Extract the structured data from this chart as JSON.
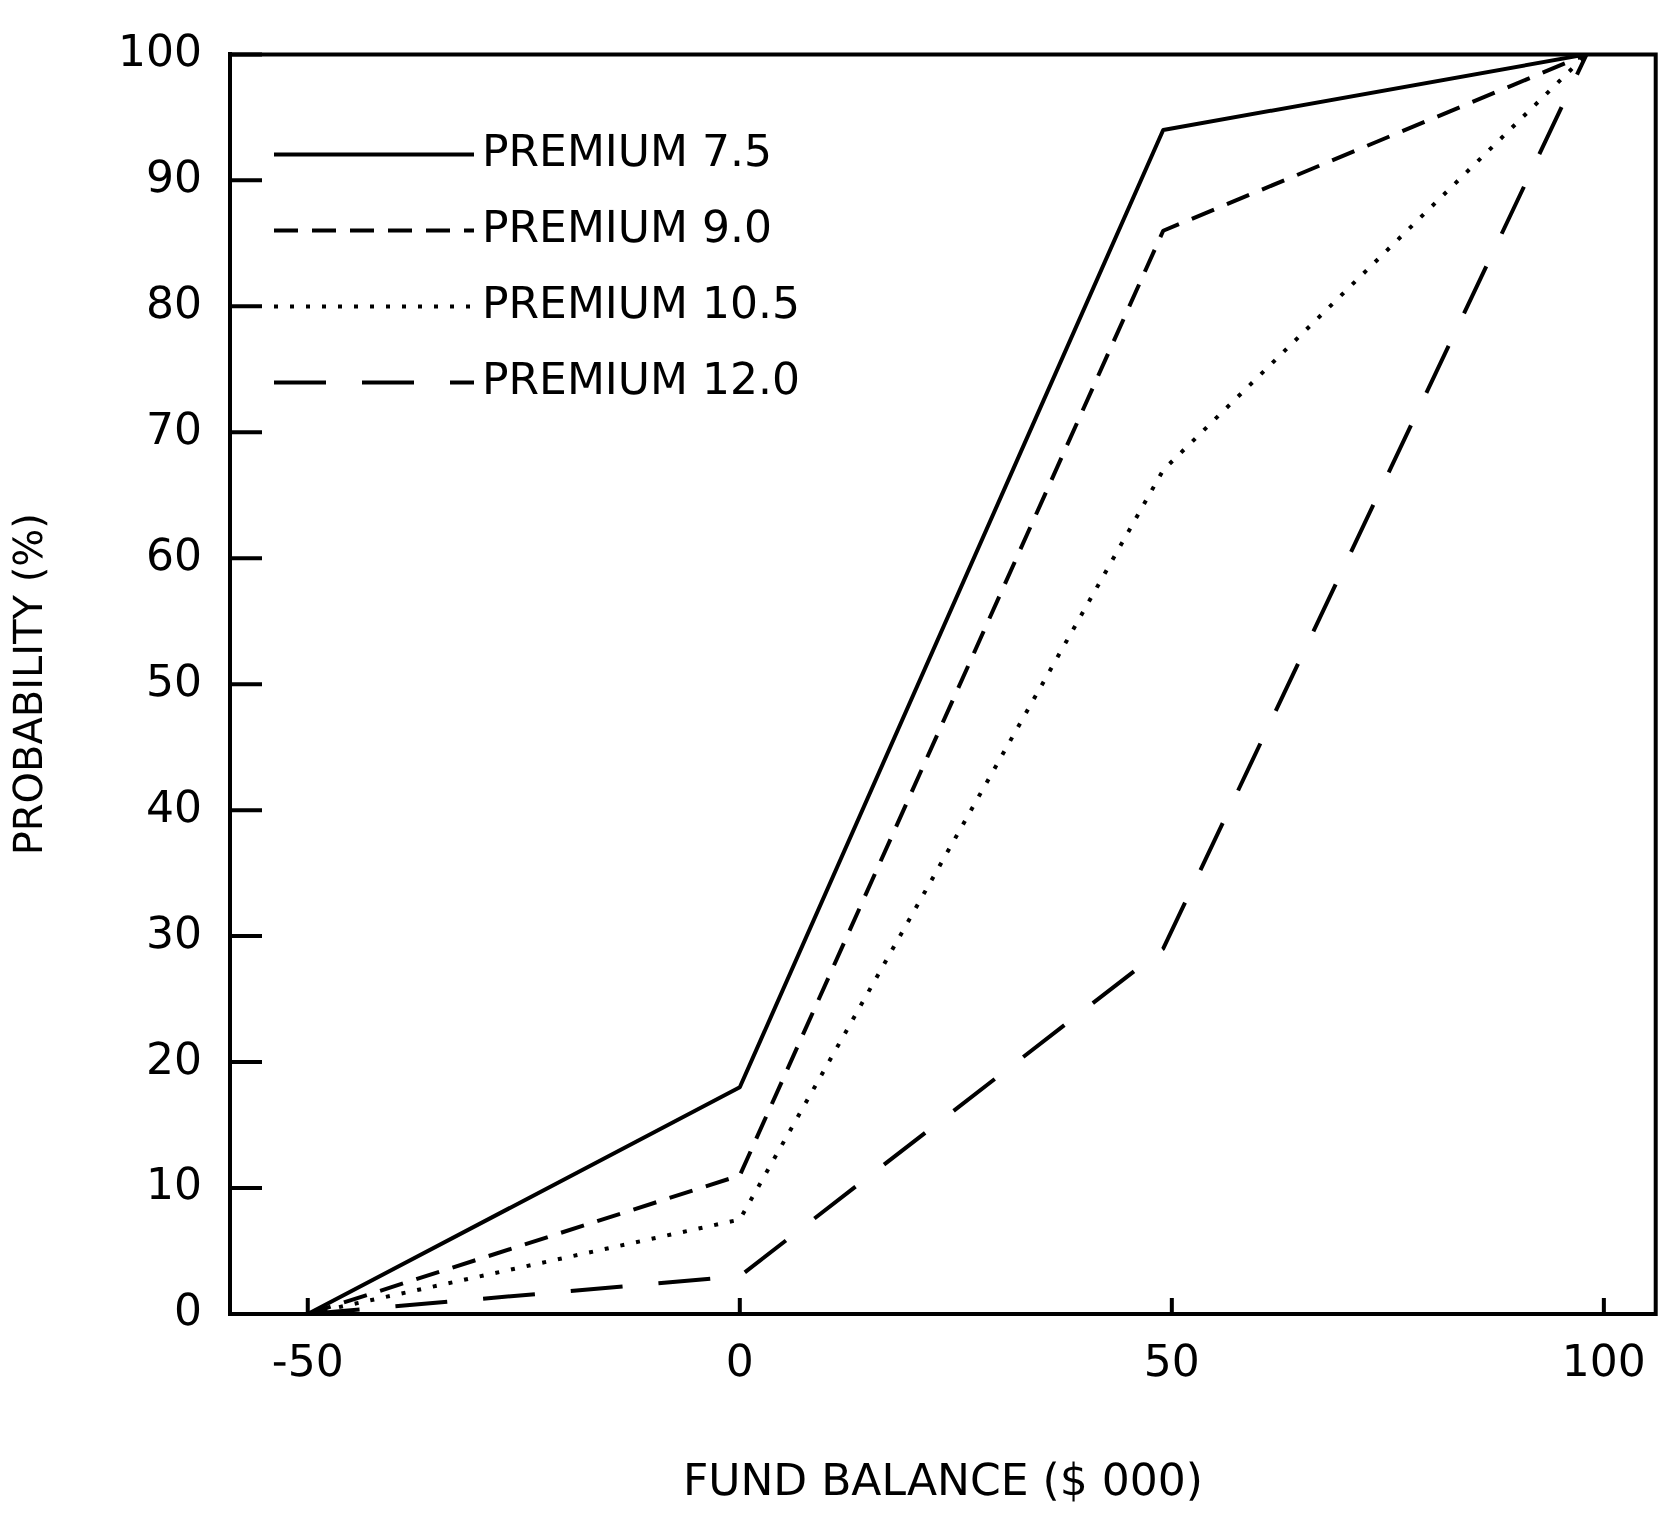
{
  "chart_data": {
    "type": "line",
    "xlabel": "FUND BALANCE ($ 000)",
    "ylabel": "PROBABILITY (%)",
    "xlim": [
      -59,
      106
    ],
    "xticks": [
      -50,
      0,
      50,
      100
    ],
    "ylim": [
      0,
      100
    ],
    "yticks": [
      0,
      10,
      20,
      30,
      40,
      50,
      60,
      70,
      80,
      90,
      100
    ],
    "grid": false,
    "legend": "top left",
    "marker": "none",
    "series": [
      {
        "name": "PREMIUM 7.5",
        "color": "#000000",
        "line_style": "solid",
        "x": [
          -50,
          0,
          49,
          98
        ],
        "values": [
          0,
          18,
          94,
          100
        ]
      },
      {
        "name": "PREMIUM 9.0",
        "color": "#000000",
        "line_style": "dashed",
        "x": [
          -50,
          0,
          49,
          98
        ],
        "values": [
          0,
          11,
          86,
          100
        ]
      },
      {
        "name": "PREMIUM 10.5",
        "color": "#000000",
        "line_style": "dotted",
        "x": [
          -50,
          0,
          49,
          98
        ],
        "values": [
          0,
          7.5,
          67,
          100
        ]
      },
      {
        "name": "PREMIUM 12.0",
        "color": "#000000",
        "line_style": "longdash",
        "x": [
          -50,
          0,
          49,
          98
        ],
        "values": [
          0,
          3,
          29,
          100
        ]
      }
    ]
  }
}
